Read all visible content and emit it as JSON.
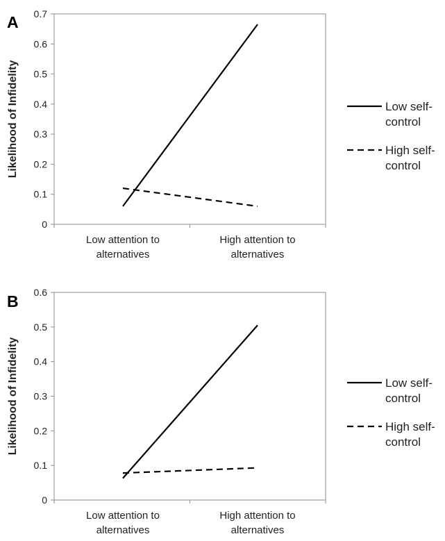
{
  "chart_data": [
    {
      "type": "line",
      "panel": "A",
      "categories": [
        "Low attention to\nalternatives",
        "High attention to\nalternatives"
      ],
      "ylabel": "Likelihood of Infidelity",
      "ylim": [
        0,
        0.7
      ],
      "yticks": [
        "0",
        "0.1",
        "0.2",
        "0.3",
        "0.4",
        "0.5",
        "0.6",
        "0.7"
      ],
      "grid": false,
      "legend_position": "right",
      "series": [
        {
          "name": "Low self-\ncontrol",
          "style": "solid",
          "values": [
            0.06,
            0.665
          ]
        },
        {
          "name": "High self-\ncontrol",
          "style": "dashed",
          "values": [
            0.12,
            0.06
          ]
        }
      ]
    },
    {
      "type": "line",
      "panel": "B",
      "categories": [
        "Low attention to\nalternatives",
        "High attention to\nalternatives"
      ],
      "ylabel": "Likelihood of Infidelity",
      "ylim": [
        0,
        0.6
      ],
      "yticks": [
        "0",
        "0.1",
        "0.2",
        "0.3",
        "0.4",
        "0.5",
        "0.6"
      ],
      "grid": false,
      "legend_position": "right",
      "series": [
        {
          "name": "Low self-\ncontrol",
          "style": "solid",
          "values": [
            0.063,
            0.505
          ]
        },
        {
          "name": "High self-\ncontrol",
          "style": "dashed",
          "values": [
            0.078,
            0.093
          ]
        }
      ]
    }
  ]
}
